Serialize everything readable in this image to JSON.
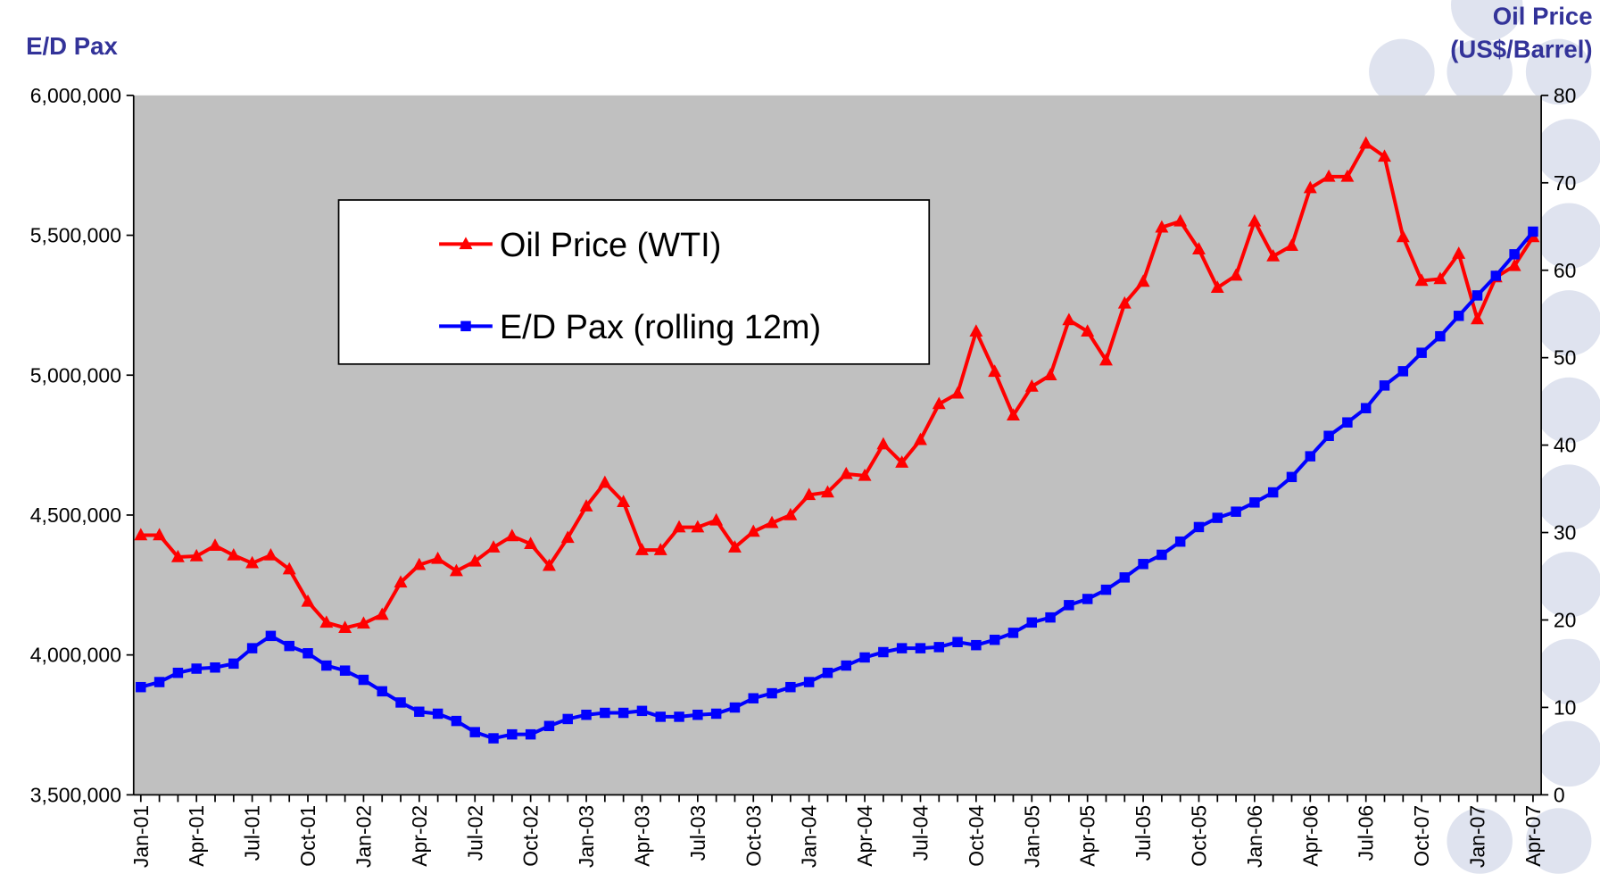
{
  "chart_data": {
    "type": "line",
    "y_label": "E/D Pax",
    "y2_label": [
      "Oil Price",
      "(US$/Barrel)"
    ],
    "categories": [
      "Jan-01",
      null,
      null,
      "Apr-01",
      null,
      null,
      "Jul-01",
      null,
      null,
      "Oct-01",
      null,
      null,
      "Jan-02",
      null,
      null,
      "Apr-02",
      null,
      null,
      "Jul-02",
      null,
      null,
      "Oct-02",
      null,
      null,
      "Jan-03",
      null,
      null,
      "Apr-03",
      null,
      null,
      "Jul-03",
      null,
      null,
      "Oct-03",
      null,
      null,
      "Jan-04",
      null,
      null,
      "Apr-04",
      null,
      null,
      "Jul-04",
      null,
      null,
      "Oct-04",
      null,
      null,
      "Jan-05",
      null,
      null,
      "Apr-05",
      null,
      null,
      "Jul-05",
      null,
      null,
      "Oct-05",
      null,
      null,
      "Jan-06",
      null,
      null,
      "Apr-06",
      null,
      null,
      "Jul-06",
      null,
      null,
      "Oct-07",
      null,
      null,
      "Jan-07",
      null,
      null,
      "Apr-07"
    ],
    "series": [
      {
        "name": "Oil Price (WTI)",
        "color": "#ff0000",
        "marker": "triangle",
        "axis": "y2",
        "values": [
          29.7,
          29.7,
          27.2,
          27.3,
          28.5,
          27.4,
          26.5,
          27.4,
          25.8,
          22.1,
          19.7,
          19.1,
          19.6,
          20.6,
          24.3,
          26.3,
          27.0,
          25.6,
          26.7,
          28.3,
          29.6,
          28.7,
          26.2,
          29.4,
          33.0,
          35.7,
          33.5,
          28.0,
          28.0,
          30.6,
          30.6,
          31.4,
          28.3,
          30.1,
          31.1,
          32.0,
          34.3,
          34.6,
          36.7,
          36.5,
          40.1,
          38.0,
          40.6,
          44.7,
          45.9,
          53.0,
          48.4,
          43.4,
          46.7,
          48.0,
          54.3,
          53.0,
          49.7,
          56.2,
          58.7,
          64.9,
          65.6,
          62.4,
          58.0,
          59.4,
          65.6,
          61.6,
          62.8,
          69.4,
          70.7,
          70.7,
          74.5,
          73.0,
          63.8,
          58.8,
          59.0,
          61.9,
          54.4,
          59.2,
          60.5,
          63.8
        ]
      },
      {
        "name": "E/D Pax (rolling 12m)",
        "color": "#0000ff",
        "marker": "square",
        "axis": "y",
        "values": [
          3885000,
          3903000,
          3936000,
          3951000,
          3955000,
          3969000,
          4024000,
          4068000,
          4032000,
          4006000,
          3962000,
          3944000,
          3911000,
          3870000,
          3830000,
          3797000,
          3790000,
          3764000,
          3724000,
          3702000,
          3716000,
          3716000,
          3746000,
          3771000,
          3786000,
          3793000,
          3793000,
          3800000,
          3779000,
          3779000,
          3786000,
          3790000,
          3812000,
          3845000,
          3863000,
          3885000,
          3903000,
          3936000,
          3962000,
          3991000,
          4010000,
          4024000,
          4024000,
          4028000,
          4046000,
          4035000,
          4054000,
          4079000,
          4116000,
          4134000,
          4178000,
          4200000,
          4233000,
          4277000,
          4325000,
          4358000,
          4405000,
          4457000,
          4490000,
          4512000,
          4545000,
          4581000,
          4636000,
          4710000,
          4783000,
          4831000,
          4882000,
          4963000,
          5014000,
          5080000,
          5139000,
          5212000,
          5285000,
          5355000,
          5432000,
          5513000
        ]
      }
    ],
    "ylim": [
      3500000,
      6000000
    ],
    "yticks": [
      {
        "value": 3500000,
        "label": "3,500,000"
      },
      {
        "value": 4000000,
        "label": "4,000,000"
      },
      {
        "value": 4500000,
        "label": "4,500,000"
      },
      {
        "value": 5000000,
        "label": "5,000,000"
      },
      {
        "value": 5500000,
        "label": "5,500,000"
      },
      {
        "value": 6000000,
        "label": "6,000,000"
      }
    ],
    "y2lim": [
      0,
      80
    ],
    "y2ticks": [
      0,
      10,
      20,
      30,
      40,
      50,
      60,
      70,
      80
    ],
    "plot_background": "#c0c0c0",
    "legend": "upper left"
  }
}
